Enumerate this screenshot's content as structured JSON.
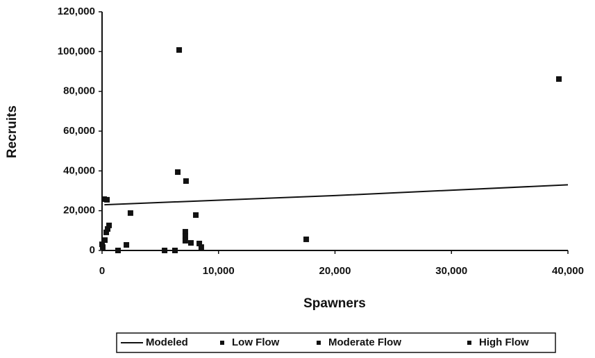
{
  "chart_data": {
    "type": "scatter",
    "xlabel": "Spawners",
    "ylabel": "Recruits",
    "xlim": [
      0,
      40000
    ],
    "ylim": [
      0,
      120000
    ],
    "xticks": [
      0,
      {
        "value": 10000,
        "label": "10,000"
      },
      {
        "value": 20000,
        "label": "20,000"
      },
      {
        "value": 30000,
        "label": "30,000"
      },
      {
        "value": 40000,
        "label": "40,000"
      }
    ],
    "yticks": [
      0,
      {
        "value": 20000,
        "label": "20,000"
      },
      {
        "value": 40000,
        "label": "40,000"
      },
      {
        "value": 60000,
        "label": "60,000"
      },
      {
        "value": 80000,
        "label": "80,000"
      },
      {
        "value": 100000,
        "label": "100,000"
      },
      {
        "value": 120000,
        "label": "120,000"
      }
    ],
    "legend": "bottom",
    "series": [
      {
        "name": "Modeled",
        "kind": "line",
        "color": "#111111",
        "x": [
          200,
          20000,
          40000
        ],
        "values": [
          23000,
          27600,
          33000
        ]
      },
      {
        "name": "Low Flow",
        "kind": "marker",
        "color": "#111111",
        "x": [
          0,
          60,
          240,
          360,
          1370,
          2090,
          5370,
          6260,
          8520,
          7630
        ],
        "values": [
          3100,
          1700,
          5200,
          9100,
          0,
          2800,
          0,
          0,
          1700,
          3800
        ]
      },
      {
        "name": "Moderate Flow",
        "kind": "marker",
        "color": "#111111",
        "x": [
          480,
          600,
          2440,
          7150,
          7150,
          7150,
          8350,
          8050,
          17530
        ],
        "values": [
          10800,
          12600,
          18800,
          9400,
          7300,
          4900,
          3500,
          17800,
          5600
        ]
      },
      {
        "name": "High Flow",
        "kind": "marker",
        "color": "#111111",
        "x": [
          6620,
          39225,
          6500,
          7210,
          180,
          420
        ],
        "values": [
          100800,
          86200,
          39400,
          34900,
          25800,
          25500
        ]
      }
    ]
  }
}
